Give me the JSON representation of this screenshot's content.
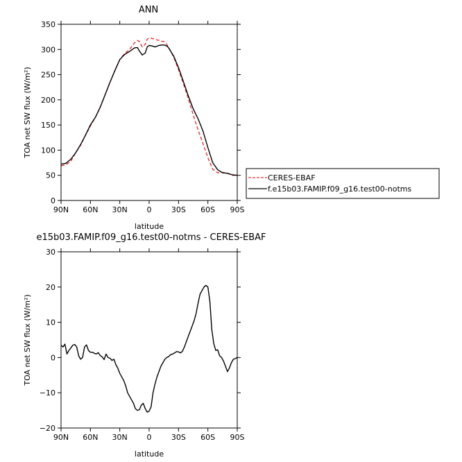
{
  "chart_data": [
    {
      "type": "line",
      "title": "ANN",
      "xlabel": "latitude",
      "ylabel": "TOA net SW flux (W/m²)",
      "xlim": [
        90,
        -90
      ],
      "ylim": [
        0,
        350
      ],
      "yticks": [
        0,
        50,
        100,
        150,
        200,
        250,
        300,
        350
      ],
      "xticks": [
        90,
        60,
        30,
        0,
        -30,
        -60,
        -90
      ],
      "xtick_labels": [
        "90N",
        "60N",
        "30N",
        "0",
        "30S",
        "60S",
        "90S"
      ],
      "legend": {
        "placement": "right"
      },
      "series": [
        {
          "name": "CERES-EBAF",
          "color": "#e8312f",
          "dash": "dashed",
          "x": [
            90,
            85,
            80,
            75,
            70,
            65,
            60,
            55,
            50,
            45,
            40,
            35,
            30,
            25,
            20,
            15,
            12,
            10,
            7,
            4,
            2,
            0,
            -3,
            -6,
            -10,
            -13,
            -15,
            -18,
            -20,
            -25,
            -30,
            -35,
            -40,
            -45,
            -50,
            -55,
            -60,
            -65,
            -70,
            -75,
            -80,
            -85,
            -90
          ],
          "y": [
            69,
            71,
            78,
            95,
            110,
            130,
            148,
            165,
            185,
            210,
            235,
            258,
            280,
            292,
            300,
            313,
            318,
            316,
            305,
            310,
            320,
            323,
            322,
            320,
            318,
            316,
            316,
            310,
            304,
            285,
            260,
            232,
            203,
            170,
            140,
            113,
            85,
            62,
            55,
            56,
            54,
            50,
            50
          ]
        },
        {
          "name": "f.e15b03.FAMIP.f09_g16.test00-notms",
          "color": "#000000",
          "dash": "solid",
          "x": [
            90,
            85,
            80,
            75,
            70,
            65,
            60,
            55,
            50,
            45,
            40,
            35,
            30,
            25,
            20,
            15,
            12,
            10,
            7,
            4,
            2,
            0,
            -3,
            -6,
            -10,
            -13,
            -15,
            -18,
            -20,
            -25,
            -30,
            -35,
            -40,
            -45,
            -50,
            -55,
            -60,
            -65,
            -70,
            -75,
            -80,
            -85,
            -90
          ],
          "y": [
            72,
            74,
            82,
            95,
            111,
            130,
            150,
            165,
            185,
            210,
            235,
            258,
            280,
            290,
            296,
            303,
            304,
            297,
            289,
            293,
            305,
            308,
            307,
            305,
            308,
            309,
            309,
            307,
            303,
            287,
            264,
            236,
            208,
            182,
            162,
            138,
            105,
            75,
            61,
            55,
            54,
            51,
            50
          ]
        }
      ]
    },
    {
      "type": "line",
      "title": "e15b03.FAMIP.f09_g16.test00-notms - CERES-EBAF",
      "xlabel": "latitude",
      "ylabel": "TOA net SW flux (W/m²)",
      "xlim": [
        90,
        -90
      ],
      "ylim": [
        -20,
        30
      ],
      "yticks": [
        -20,
        -10,
        0,
        10,
        20,
        30
      ],
      "xticks": [
        90,
        60,
        30,
        0,
        -30,
        -60,
        -90
      ],
      "xtick_labels": [
        "90N",
        "60N",
        "30N",
        "0",
        "30S",
        "60S",
        "90S"
      ],
      "series": [
        {
          "color": "#000000",
          "x": [
            90,
            88,
            86,
            84,
            82,
            80,
            78,
            76,
            74,
            72,
            70,
            68,
            66,
            64,
            62,
            60,
            58,
            56,
            54,
            52,
            50,
            48,
            46,
            44,
            42,
            40,
            38,
            36,
            34,
            32,
            30,
            28,
            26,
            24,
            22,
            20,
            18,
            16,
            14,
            12,
            10,
            8,
            6,
            4,
            2,
            0,
            -2,
            -4,
            -6,
            -8,
            -10,
            -12,
            -14,
            -16,
            -18,
            -20,
            -22,
            -24,
            -26,
            -28,
            -30,
            -32,
            -34,
            -36,
            -38,
            -40,
            -42,
            -44,
            -46,
            -48,
            -50,
            -52,
            -54,
            -56,
            -58,
            -60,
            -62,
            -63,
            -64,
            -66,
            -68,
            -70,
            -72,
            -74,
            -76,
            -78,
            -80,
            -82,
            -84,
            -86,
            -88,
            -90
          ],
          "y": [
            3.5,
            3.0,
            3.8,
            1.0,
            2.0,
            2.7,
            3.5,
            3.7,
            3.0,
            0.5,
            -0.5,
            0.0,
            3.0,
            3.6,
            2.0,
            1.5,
            1.5,
            1.2,
            1.0,
            1.4,
            0.6,
            0.2,
            -0.6,
            1.0,
            0.0,
            -0.2,
            -0.8,
            -0.5,
            -2.0,
            -3.0,
            -4.5,
            -5.5,
            -6.5,
            -8.0,
            -10.0,
            -11.0,
            -12.0,
            -13.0,
            -14.5,
            -15.0,
            -14.8,
            -13.5,
            -13.0,
            -14.5,
            -15.5,
            -15.2,
            -14.0,
            -10.0,
            -7.5,
            -5.5,
            -4.0,
            -2.5,
            -1.5,
            -0.5,
            0.0,
            0.3,
            0.8,
            1.0,
            1.3,
            1.7,
            1.6,
            1.3,
            1.8,
            3.0,
            4.5,
            6.0,
            7.5,
            9.0,
            10.5,
            12.5,
            15.5,
            18.0,
            19.0,
            20.0,
            20.5,
            20.0,
            16.0,
            12.0,
            8.0,
            4.0,
            2.0,
            2.2,
            0.5,
            0.0,
            -1.0,
            -2.5,
            -4.0,
            -3.0,
            -1.5,
            -0.5,
            -0.3,
            0.0
          ]
        }
      ]
    }
  ]
}
